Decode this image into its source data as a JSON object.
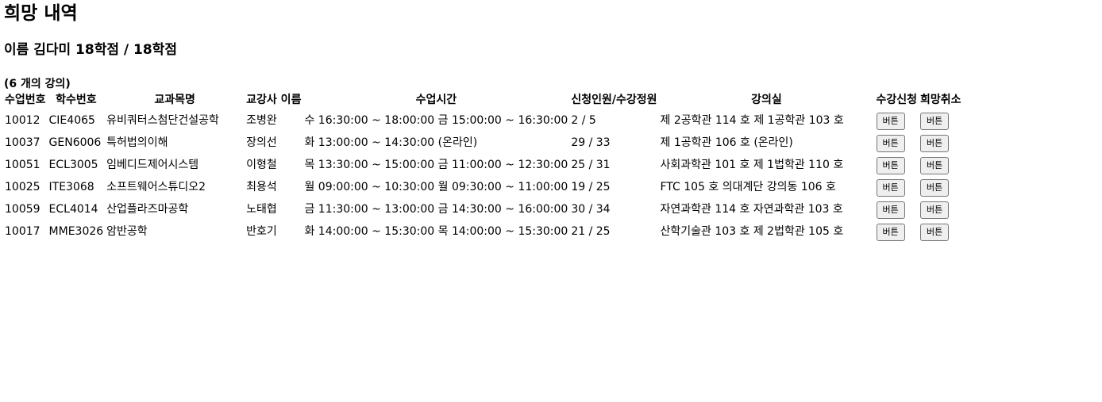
{
  "page": {
    "title": "희망 내역",
    "subtitle": "이름 김다미 18학점 / 18학점",
    "count": "(6 개의 강의)"
  },
  "table": {
    "headers": [
      "수업번호",
      "학수번호",
      "교과목명",
      "교강사 이름",
      "수업시간",
      "신청인원/수강정원",
      "강의실",
      "수강신청",
      "희망취소"
    ],
    "rows": [
      {
        "no": "10012",
        "code": "CIE4065",
        "name": "유비쿼터스첨단건설공학",
        "prof": "조병완",
        "time": "수 16:30:00 ~ 18:00:00 금 15:00:00 ~ 16:30:00",
        "seats": "2 / 5",
        "room": "제 2공학관 114 호 제 1공학관 103 호",
        "enroll": "버튼",
        "cancel": "버튼"
      },
      {
        "no": "10037",
        "code": "GEN6006",
        "name": "특허법의이해",
        "prof": "장의선",
        "time": "화 13:00:00 ~ 14:30:00 (온라인)",
        "seats": "29 / 33",
        "room": "제 1공학관 106 호 (온라인)",
        "enroll": "버튼",
        "cancel": "버튼"
      },
      {
        "no": "10051",
        "code": "ECL3005",
        "name": "임베디드제어시스템",
        "prof": "이형철",
        "time": "목 13:30:00 ~ 15:00:00 금 11:00:00 ~ 12:30:00",
        "seats": "25 / 31",
        "room": "사회과학관 101 호 제 1법학관 110 호",
        "enroll": "버튼",
        "cancel": "버튼"
      },
      {
        "no": "10025",
        "code": "ITE3068",
        "name": "소프트웨어스튜디오2",
        "prof": "최용석",
        "time": "월 09:00:00 ~ 10:30:00 월 09:30:00 ~ 11:00:00",
        "seats": "19 / 25",
        "room": "FTC 105 호 의대계단 강의동 106 호",
        "enroll": "버튼",
        "cancel": "버튼"
      },
      {
        "no": "10059",
        "code": "ECL4014",
        "name": "산업플라즈마공학",
        "prof": "노태협",
        "time": "금 11:30:00 ~ 13:00:00 금 14:30:00 ~ 16:00:00",
        "seats": "30 / 34",
        "room": "자연과학관 114 호 자연과학관 103 호",
        "enroll": "버튼",
        "cancel": "버튼"
      },
      {
        "no": "10017",
        "code": "MME3026",
        "name": "암반공학",
        "prof": "반호기",
        "time": "화 14:00:00 ~ 15:30:00 목 14:00:00 ~ 15:30:00",
        "seats": "21 / 25",
        "room": "산학기술관 103 호 제 2법학관 105 호",
        "enroll": "버튼",
        "cancel": "버튼"
      }
    ]
  }
}
